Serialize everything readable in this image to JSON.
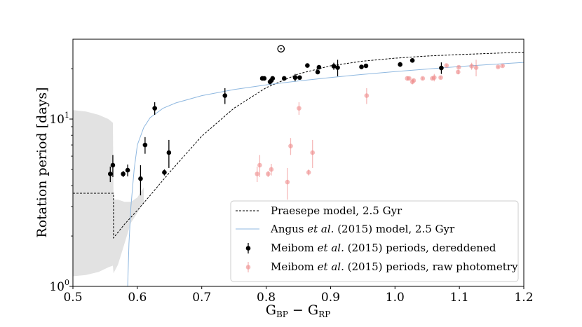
{
  "chart_data": {
    "type": "scatter",
    "title": "",
    "xlabel": "G",
    "xlabel_sub_1": "BP",
    "xlabel_minus": " − G",
    "xlabel_sub_2": "RP",
    "ylabel": "Rotation period [days]",
    "yscale": "log",
    "xlim": [
      0.5,
      1.2
    ],
    "ylim": [
      1,
      30
    ],
    "x_ticks": [
      0.5,
      0.6,
      0.7,
      0.8,
      0.9,
      1.0,
      1.1,
      1.2
    ],
    "x_tick_labels": [
      "0.5",
      "0.6",
      "0.7",
      "0.8",
      "0.9",
      "1.0",
      "1.1",
      "1.2"
    ],
    "y_tick_labels": {
      "base_10": "10",
      "base_1": "10",
      "exp_1": "1",
      "exp_0": "0"
    },
    "sun_marker": {
      "x": 0.823,
      "y": 26.5,
      "symbol": "⊙"
    },
    "colors": {
      "praesepe": "#000000",
      "angus": "#8fb8e0",
      "dereddened": "#000000",
      "raw": "#ef8a8a",
      "band": "#e2e2e2"
    },
    "series": [
      {
        "name": "Praesepe model, 2.5 Gyr",
        "style": "dashed-line",
        "flat_segment": {
          "x": [
            0.5,
            0.563
          ],
          "y": 3.6
        },
        "x": [
          0.563,
          0.58,
          0.6,
          0.62,
          0.65,
          0.7,
          0.75,
          0.8,
          0.85,
          0.9,
          0.95,
          1.0,
          1.05,
          1.1,
          1.15,
          1.2
        ],
        "y": [
          1.95,
          2.35,
          2.85,
          3.5,
          4.8,
          7.9,
          11.6,
          15.4,
          18.6,
          20.8,
          22.2,
          23.1,
          23.8,
          24.3,
          24.7,
          25.1
        ]
      },
      {
        "name": "Angus et al. (2015) model, 2.5 Gyr",
        "style": "line",
        "x": [
          0.585,
          0.587,
          0.59,
          0.595,
          0.6,
          0.61,
          0.62,
          0.64,
          0.66,
          0.7,
          0.75,
          0.8,
          0.85,
          0.9,
          0.95,
          1.0,
          1.05,
          1.1,
          1.15,
          1.2
        ],
        "y": [
          1.0,
          1.8,
          3.0,
          5.0,
          7.0,
          8.9,
          10.2,
          11.6,
          12.5,
          13.8,
          15.0,
          16.0,
          16.9,
          17.7,
          18.5,
          19.2,
          19.9,
          20.6,
          21.2,
          21.8
        ]
      },
      {
        "name": "Meibom et al. (2015) periods, dereddened",
        "style": "errorbar-points",
        "x": [
          0.558,
          0.562,
          0.578,
          0.585,
          0.605,
          0.612,
          0.627,
          0.642,
          0.649,
          0.736,
          0.794,
          0.797,
          0.806,
          0.808,
          0.81,
          0.828,
          0.845,
          0.852,
          0.864,
          0.88,
          0.882,
          0.905,
          0.911,
          0.948,
          0.955,
          1.008,
          1.027,
          1.072
        ],
        "y": [
          4.7,
          5.3,
          4.7,
          4.95,
          4.4,
          7.0,
          11.6,
          4.8,
          6.3,
          13.8,
          17.5,
          17.5,
          16.7,
          17.0,
          17.5,
          17.5,
          17.7,
          17.7,
          20.9,
          19.1,
          20.4,
          20.7,
          20.3,
          20.5,
          20.8,
          21.2,
          22.4,
          20.2
        ],
        "yerr": [
          0.5,
          0.8,
          0.2,
          0.4,
          0.9,
          0.8,
          1.0,
          0.2,
          1.2,
          1.5,
          0.5,
          0.3,
          0.6,
          0.4,
          0.3,
          0.3,
          0.9,
          0.3,
          0.3,
          0.6,
          0.3,
          1.0,
          2.3,
          0.3,
          0.3,
          0.7,
          0.3,
          1.6
        ]
      },
      {
        "name": "Meibom et al. (2015) periods, raw photometry",
        "style": "errorbar-points",
        "x": [
          0.786,
          0.79,
          0.803,
          0.808,
          0.833,
          0.838,
          0.851,
          0.866,
          0.872,
          0.956,
          1.019,
          1.022,
          1.027,
          1.029,
          1.043,
          1.058,
          1.061,
          1.071,
          1.08,
          1.098,
          1.099,
          1.119,
          1.126,
          1.16,
          1.167
        ],
        "y": [
          4.7,
          5.3,
          4.7,
          5.0,
          4.2,
          6.9,
          11.6,
          4.8,
          6.3,
          13.8,
          17.5,
          17.5,
          16.7,
          17.0,
          17.5,
          17.5,
          17.7,
          17.7,
          20.9,
          19.1,
          20.4,
          20.7,
          20.3,
          20.5,
          20.8
        ],
        "yerr": [
          0.5,
          0.8,
          0.2,
          0.4,
          0.9,
          0.8,
          1.0,
          0.2,
          1.2,
          1.5,
          0.5,
          0.3,
          0.6,
          0.4,
          0.3,
          0.3,
          0.9,
          0.3,
          0.3,
          0.6,
          0.3,
          1.0,
          2.3,
          0.3,
          0.3
        ]
      }
    ],
    "uncertainty_band": {
      "name": "Praesepe model uncertainty",
      "x": [
        0.5,
        0.52,
        0.54,
        0.555,
        0.562,
        0.563,
        0.57,
        0.58,
        0.59,
        0.6,
        0.61
      ],
      "upper": [
        11.3,
        11.1,
        10.6,
        10.0,
        9.5,
        3.3,
        3.3,
        3.2,
        3.2,
        3.4,
        3.9
      ],
      "lower": [
        1.15,
        1.17,
        1.22,
        1.3,
        1.33,
        1.2,
        1.35,
        1.8,
        2.4,
        2.75,
        3.2
      ]
    },
    "legend": {
      "placement": "lower-right",
      "entries": [
        {
          "label": "Praesepe model, 2.5 Gyr",
          "parts": [
            "Praesepe model, 2.5 Gyr"
          ]
        },
        {
          "label": "Angus et al. (2015) model, 2.5 Gyr",
          "parts": [
            "Angus ",
            "et al.",
            " (2015) model, 2.5 Gyr"
          ]
        },
        {
          "label": "Meibom et al. (2015) periods, dereddened",
          "parts": [
            "Meibom ",
            "et al.",
            " (2015) periods, dereddened"
          ]
        },
        {
          "label": "Meibom et al. (2015) periods, raw photometry",
          "parts": [
            "Meibom ",
            "et al.",
            " (2015) periods, raw photometry"
          ]
        }
      ]
    }
  }
}
